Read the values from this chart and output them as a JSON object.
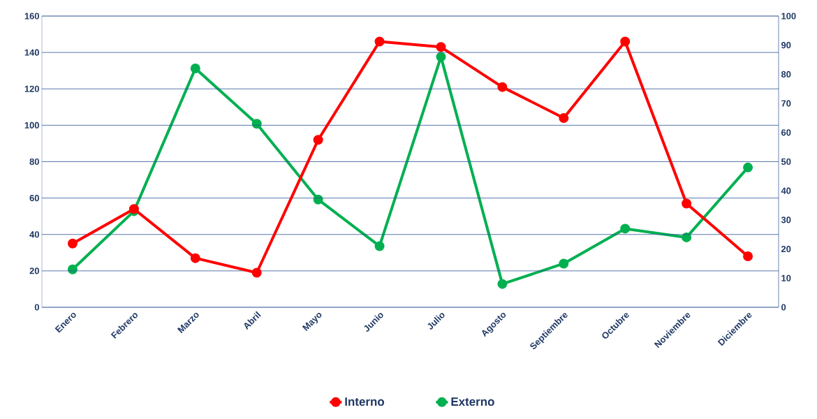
{
  "chart_data": {
    "type": "line",
    "categories": [
      "Enero",
      "Febrero",
      "Marzo",
      "Abril",
      "Mayo",
      "Junio",
      "Julio",
      "Agosto",
      "Septiembre",
      "Octubre",
      "Noviembre",
      "Diciembre"
    ],
    "series": [
      {
        "name": "Interno",
        "color": "#ff0000",
        "values": [
          35,
          54,
          27,
          19,
          92,
          146,
          143,
          121,
          104,
          146,
          57,
          28
        ]
      },
      {
        "name": "Externo",
        "color": "#00b050",
        "axis": "y2",
        "values": [
          13,
          33,
          82,
          63,
          37,
          21,
          86,
          8,
          15,
          27,
          24,
          48
        ]
      }
    ],
    "ylim": [
      0,
      160
    ],
    "yticks": [
      0,
      20,
      40,
      60,
      80,
      100,
      120,
      140,
      160
    ],
    "y2lim": [
      0,
      100
    ],
    "y2ticks": [
      0,
      10,
      20,
      30,
      40,
      50,
      60,
      70,
      80,
      90,
      100
    ],
    "grid": "y",
    "legend": "bottom",
    "marker": "circle",
    "line_style": "solid"
  }
}
